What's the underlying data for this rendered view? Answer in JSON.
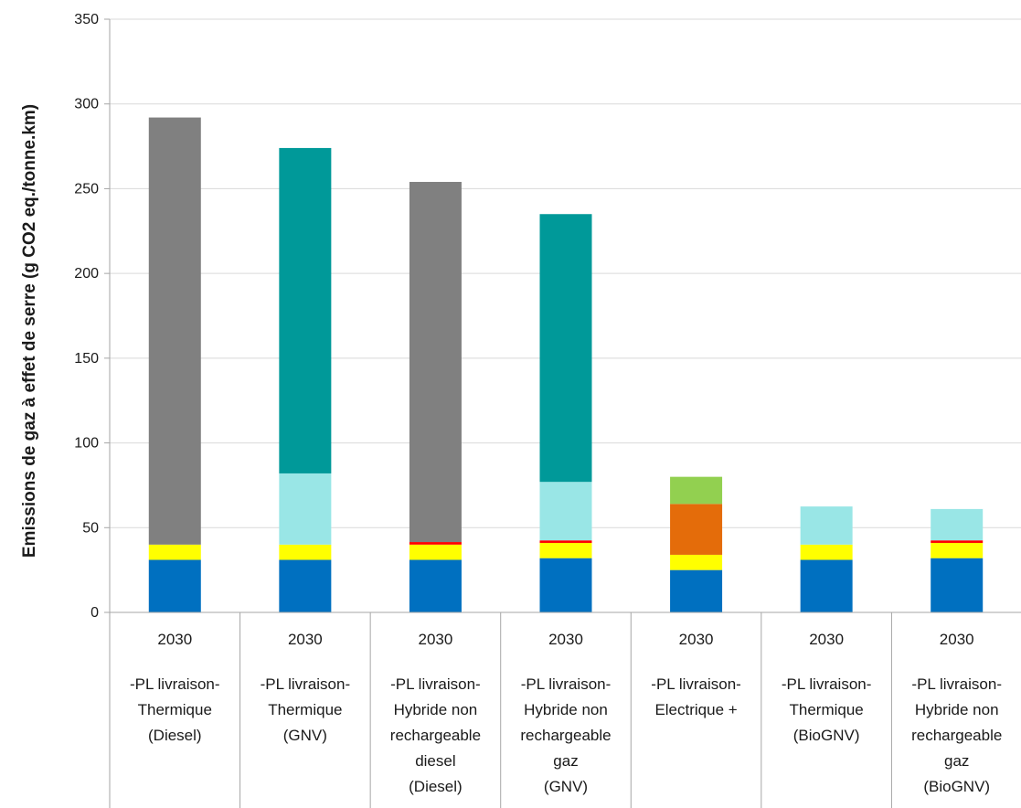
{
  "chart_data": {
    "type": "bar",
    "stacked": true,
    "title": "",
    "xlabel": "",
    "ylabel": "Emissions de gaz à effet de serre (g CO2 eq./tonne.km)",
    "ylim": [
      0,
      350
    ],
    "yticks": [
      0,
      50,
      100,
      150,
      200,
      250,
      300,
      350
    ],
    "grid": true,
    "legend": "none",
    "categories": [
      {
        "year": "2030",
        "lines": [
          "-PL livraison-",
          "Thermique",
          "(Diesel)"
        ]
      },
      {
        "year": "2030",
        "lines": [
          "-PL livraison-",
          "Thermique",
          "(GNV)"
        ]
      },
      {
        "year": "2030",
        "lines": [
          "-PL livraison-",
          "Hybride non",
          "rechargeable",
          "diesel",
          "(Diesel)"
        ]
      },
      {
        "year": "2030",
        "lines": [
          "-PL livraison-",
          "Hybride non",
          "rechargeable",
          "gaz",
          "(GNV)"
        ]
      },
      {
        "year": "2030",
        "lines": [
          "-PL livraison-",
          "Electrique +"
        ]
      },
      {
        "year": "2030",
        "lines": [
          "-PL livraison-",
          "Thermique",
          "(BioGNV)"
        ]
      },
      {
        "year": "2030",
        "lines": [
          "-PL livraison-",
          "Hybride non",
          "rechargeable",
          "gaz",
          "(BioGNV)"
        ]
      }
    ],
    "series": [
      {
        "color": "#0070c0",
        "values": [
          31,
          31,
          31,
          32,
          25,
          31,
          32
        ]
      },
      {
        "color": "#ffff00",
        "values": [
          9,
          9,
          9,
          9,
          9,
          9,
          9
        ]
      },
      {
        "color": "#ff0000",
        "values": [
          0,
          0,
          1.5,
          1.5,
          0,
          0,
          1.5
        ]
      },
      {
        "color": "#e46c0a",
        "values": [
          0,
          0,
          0,
          0,
          30,
          0,
          0
        ]
      },
      {
        "color": "#92d050",
        "values": [
          0,
          0,
          0,
          0,
          16,
          0,
          0
        ]
      },
      {
        "color": "#99e6e6",
        "values": [
          0,
          42,
          0,
          34.5,
          0,
          22.5,
          18.5
        ]
      },
      {
        "color": "#009999",
        "values": [
          0,
          192,
          0,
          158,
          0,
          0,
          0
        ]
      },
      {
        "color": "#808080",
        "values": [
          252,
          0,
          212.5,
          0,
          0,
          0,
          0
        ]
      }
    ]
  }
}
